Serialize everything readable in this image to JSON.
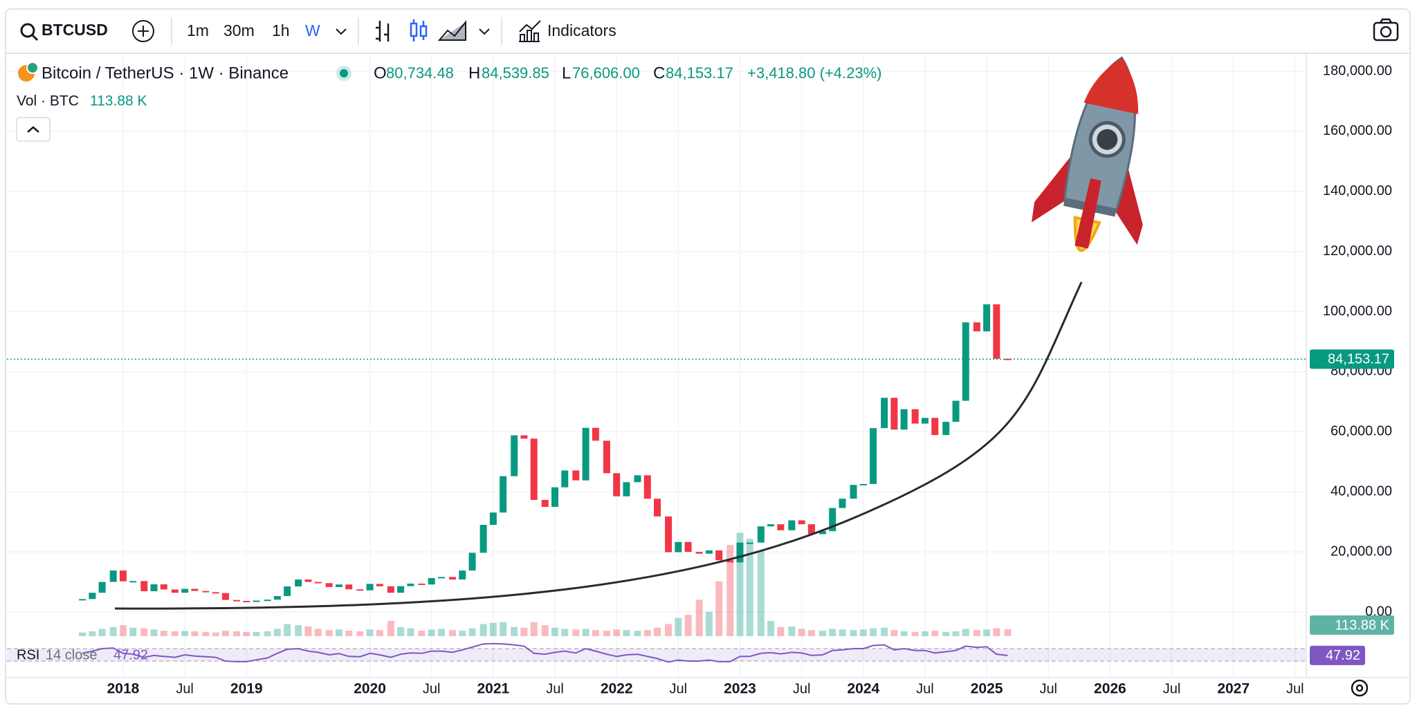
{
  "toolbar": {
    "symbol": "BTCUSD",
    "intervals": [
      "1m",
      "30m",
      "1h",
      "W"
    ],
    "indicators": "Indicators"
  },
  "legend": {
    "pair": "Bitcoin / TetherUS · 1W · Binance",
    "open_prefix": "O",
    "open": "80,734.48",
    "high_prefix": "H",
    "high": "84,539.85",
    "low_prefix": "L",
    "low": "76,606.00",
    "close_prefix": "C",
    "close": "84,153.17",
    "change": "+3,418.80 (+4.23%)",
    "volume_title": "Vol · BTC",
    "rsi_title": "RSI",
    "rsi_params": "14 close"
  },
  "chart_data": {
    "type": "candlestick",
    "up_color": "#089981",
    "down_color": "#f23645",
    "x": [
      2017.67,
      2017.75,
      2017.83,
      2017.92,
      2018.0,
      2018.08,
      2018.17,
      2018.25,
      2018.33,
      2018.42,
      2018.5,
      2018.58,
      2018.67,
      2018.75,
      2018.83,
      2018.92,
      2019.0,
      2019.08,
      2019.17,
      2019.25,
      2019.33,
      2019.42,
      2019.5,
      2019.58,
      2019.67,
      2019.75,
      2019.83,
      2019.92,
      2020.0,
      2020.08,
      2020.17,
      2020.25,
      2020.33,
      2020.42,
      2020.5,
      2020.58,
      2020.67,
      2020.75,
      2020.83,
      2020.92,
      2021.0,
      2021.08,
      2021.17,
      2021.25,
      2021.33,
      2021.42,
      2021.5,
      2021.58,
      2021.67,
      2021.75,
      2021.83,
      2021.92,
      2022.0,
      2022.08,
      2022.17,
      2022.25,
      2022.33,
      2022.42,
      2022.5,
      2022.58,
      2022.67,
      2022.75,
      2022.83,
      2022.92,
      2023.0,
      2023.08,
      2023.17,
      2023.25,
      2023.33,
      2023.42,
      2023.5,
      2023.58,
      2023.67,
      2023.75,
      2023.83,
      2023.92,
      2024.0,
      2024.08,
      2024.17,
      2024.25,
      2024.33,
      2024.42,
      2024.5,
      2024.58,
      2024.67,
      2024.75,
      2024.83,
      2024.92,
      2025.0,
      2025.08,
      2025.17
    ],
    "series": [
      {
        "name": "BTCUSD",
        "values": [
          4300,
          6400,
          10000,
          13800,
          10200,
          10300,
          6900,
          9200,
          7500,
          6400,
          7700,
          7000,
          6600,
          6300,
          4000,
          3700,
          3450,
          3800,
          4100,
          5300,
          8500,
          10800,
          10000,
          9600,
          8300,
          9150,
          7550,
          7200,
          9350,
          8550,
          6400,
          8600,
          9450,
          9150,
          11300,
          11650,
          10800,
          13800,
          19700,
          29000,
          33100,
          45200,
          58800,
          57700,
          37300,
          35000,
          41500,
          47100,
          43800,
          61300,
          57000,
          46200,
          38500,
          43200,
          45500,
          37700,
          31800,
          19900,
          23300,
          20000,
          19400,
          20500,
          17200,
          16500,
          23100,
          23100,
          28500,
          29200,
          27200,
          30500,
          29200,
          25900,
          26900,
          34600,
          37700,
          42300,
          42600,
          61200,
          71300,
          60700,
          67500,
          62700,
          64600,
          58900,
          63300,
          70300,
          96400,
          93400,
          102400,
          84300,
          84153.17
        ]
      }
    ],
    "last_label": "84,153.17",
    "xlim": [
      2017.058,
      2027.585
    ],
    "xticks": [
      {
        "value": 2018,
        "label": "2018"
      },
      {
        "value": 2018.5,
        "label": "Jul"
      },
      {
        "value": 2019,
        "label": "2019"
      },
      {
        "value": 2020,
        "label": "2020"
      },
      {
        "value": 2020.5,
        "label": "Jul"
      },
      {
        "value": 2021,
        "label": "2021"
      },
      {
        "value": 2021.5,
        "label": "Jul"
      },
      {
        "value": 2022,
        "label": "2022"
      },
      {
        "value": 2022.5,
        "label": "Jul"
      },
      {
        "value": 2023,
        "label": "2023"
      },
      {
        "value": 2023.5,
        "label": "Jul"
      },
      {
        "value": 2024,
        "label": "2024"
      },
      {
        "value": 2024.5,
        "label": "Jul"
      },
      {
        "value": 2025,
        "label": "2025"
      },
      {
        "value": 2025.5,
        "label": "Jul"
      },
      {
        "value": 2026,
        "label": "2026"
      },
      {
        "value": 2026.5,
        "label": "Jul"
      },
      {
        "value": 2027,
        "label": "2027"
      },
      {
        "value": 2027.5,
        "label": "Jul"
      }
    ],
    "ylim": [
      -8745,
      185754
    ],
    "yticks": [
      {
        "value": 0,
        "label": "0.00"
      },
      {
        "value": 20000,
        "label": "20,000.00"
      },
      {
        "value": 40000,
        "label": "40,000.00"
      },
      {
        "value": 60000,
        "label": "60,000.00"
      },
      {
        "value": 80000,
        "label": "80,000.00"
      },
      {
        "value": 100000,
        "label": "100,000.00"
      },
      {
        "value": 120000,
        "label": "120,000.00"
      },
      {
        "value": 140000,
        "label": "140,000.00"
      },
      {
        "value": 160000,
        "label": "160,000.00"
      },
      {
        "value": 180000,
        "label": "180,000.00"
      }
    ],
    "grid": true,
    "volume": {
      "values": [
        60,
        80,
        120,
        150,
        180,
        140,
        130,
        110,
        90,
        80,
        85,
        80,
        70,
        60,
        90,
        80,
        70,
        70,
        80,
        120,
        200,
        180,
        160,
        120,
        100,
        110,
        90,
        80,
        110,
        100,
        250,
        150,
        130,
        90,
        110,
        120,
        100,
        90,
        130,
        200,
        220,
        230,
        150,
        140,
        230,
        180,
        140,
        120,
        110,
        120,
        100,
        90,
        110,
        100,
        90,
        100,
        140,
        200,
        300,
        350,
        600,
        400,
        900,
        1500,
        1700,
        1600,
        1400,
        250,
        150,
        160,
        120,
        100,
        90,
        120,
        110,
        100,
        110,
        130,
        140,
        100,
        80,
        70,
        80,
        90,
        70,
        80,
        120,
        100,
        110,
        130,
        113.88
      ],
      "last_label": "113.88 K",
      "ylim": [
        0,
        2500
      ]
    },
    "rsi": {
      "color": "#7e57c2",
      "values": [
        55,
        62,
        70,
        72,
        55,
        52,
        42,
        48,
        45,
        42,
        50,
        46,
        44,
        42,
        30,
        28,
        28,
        34,
        40,
        55,
        68,
        70,
        62,
        58,
        50,
        54,
        45,
        44,
        55,
        50,
        42,
        52,
        56,
        55,
        62,
        62,
        58,
        66,
        75,
        85,
        86,
        85,
        82,
        78,
        55,
        52,
        58,
        62,
        56,
        70,
        62,
        52,
        45,
        50,
        52,
        45,
        38,
        27,
        33,
        30,
        30,
        33,
        28,
        28,
        45,
        45,
        55,
        57,
        53,
        58,
        56,
        48,
        50,
        64,
        66,
        70,
        70,
        80,
        82,
        66,
        70,
        64,
        64,
        56,
        60,
        64,
        78,
        74,
        76,
        52,
        47.92
      ],
      "ylim": [
        0,
        100
      ],
      "band": [
        30,
        70
      ]
    }
  }
}
